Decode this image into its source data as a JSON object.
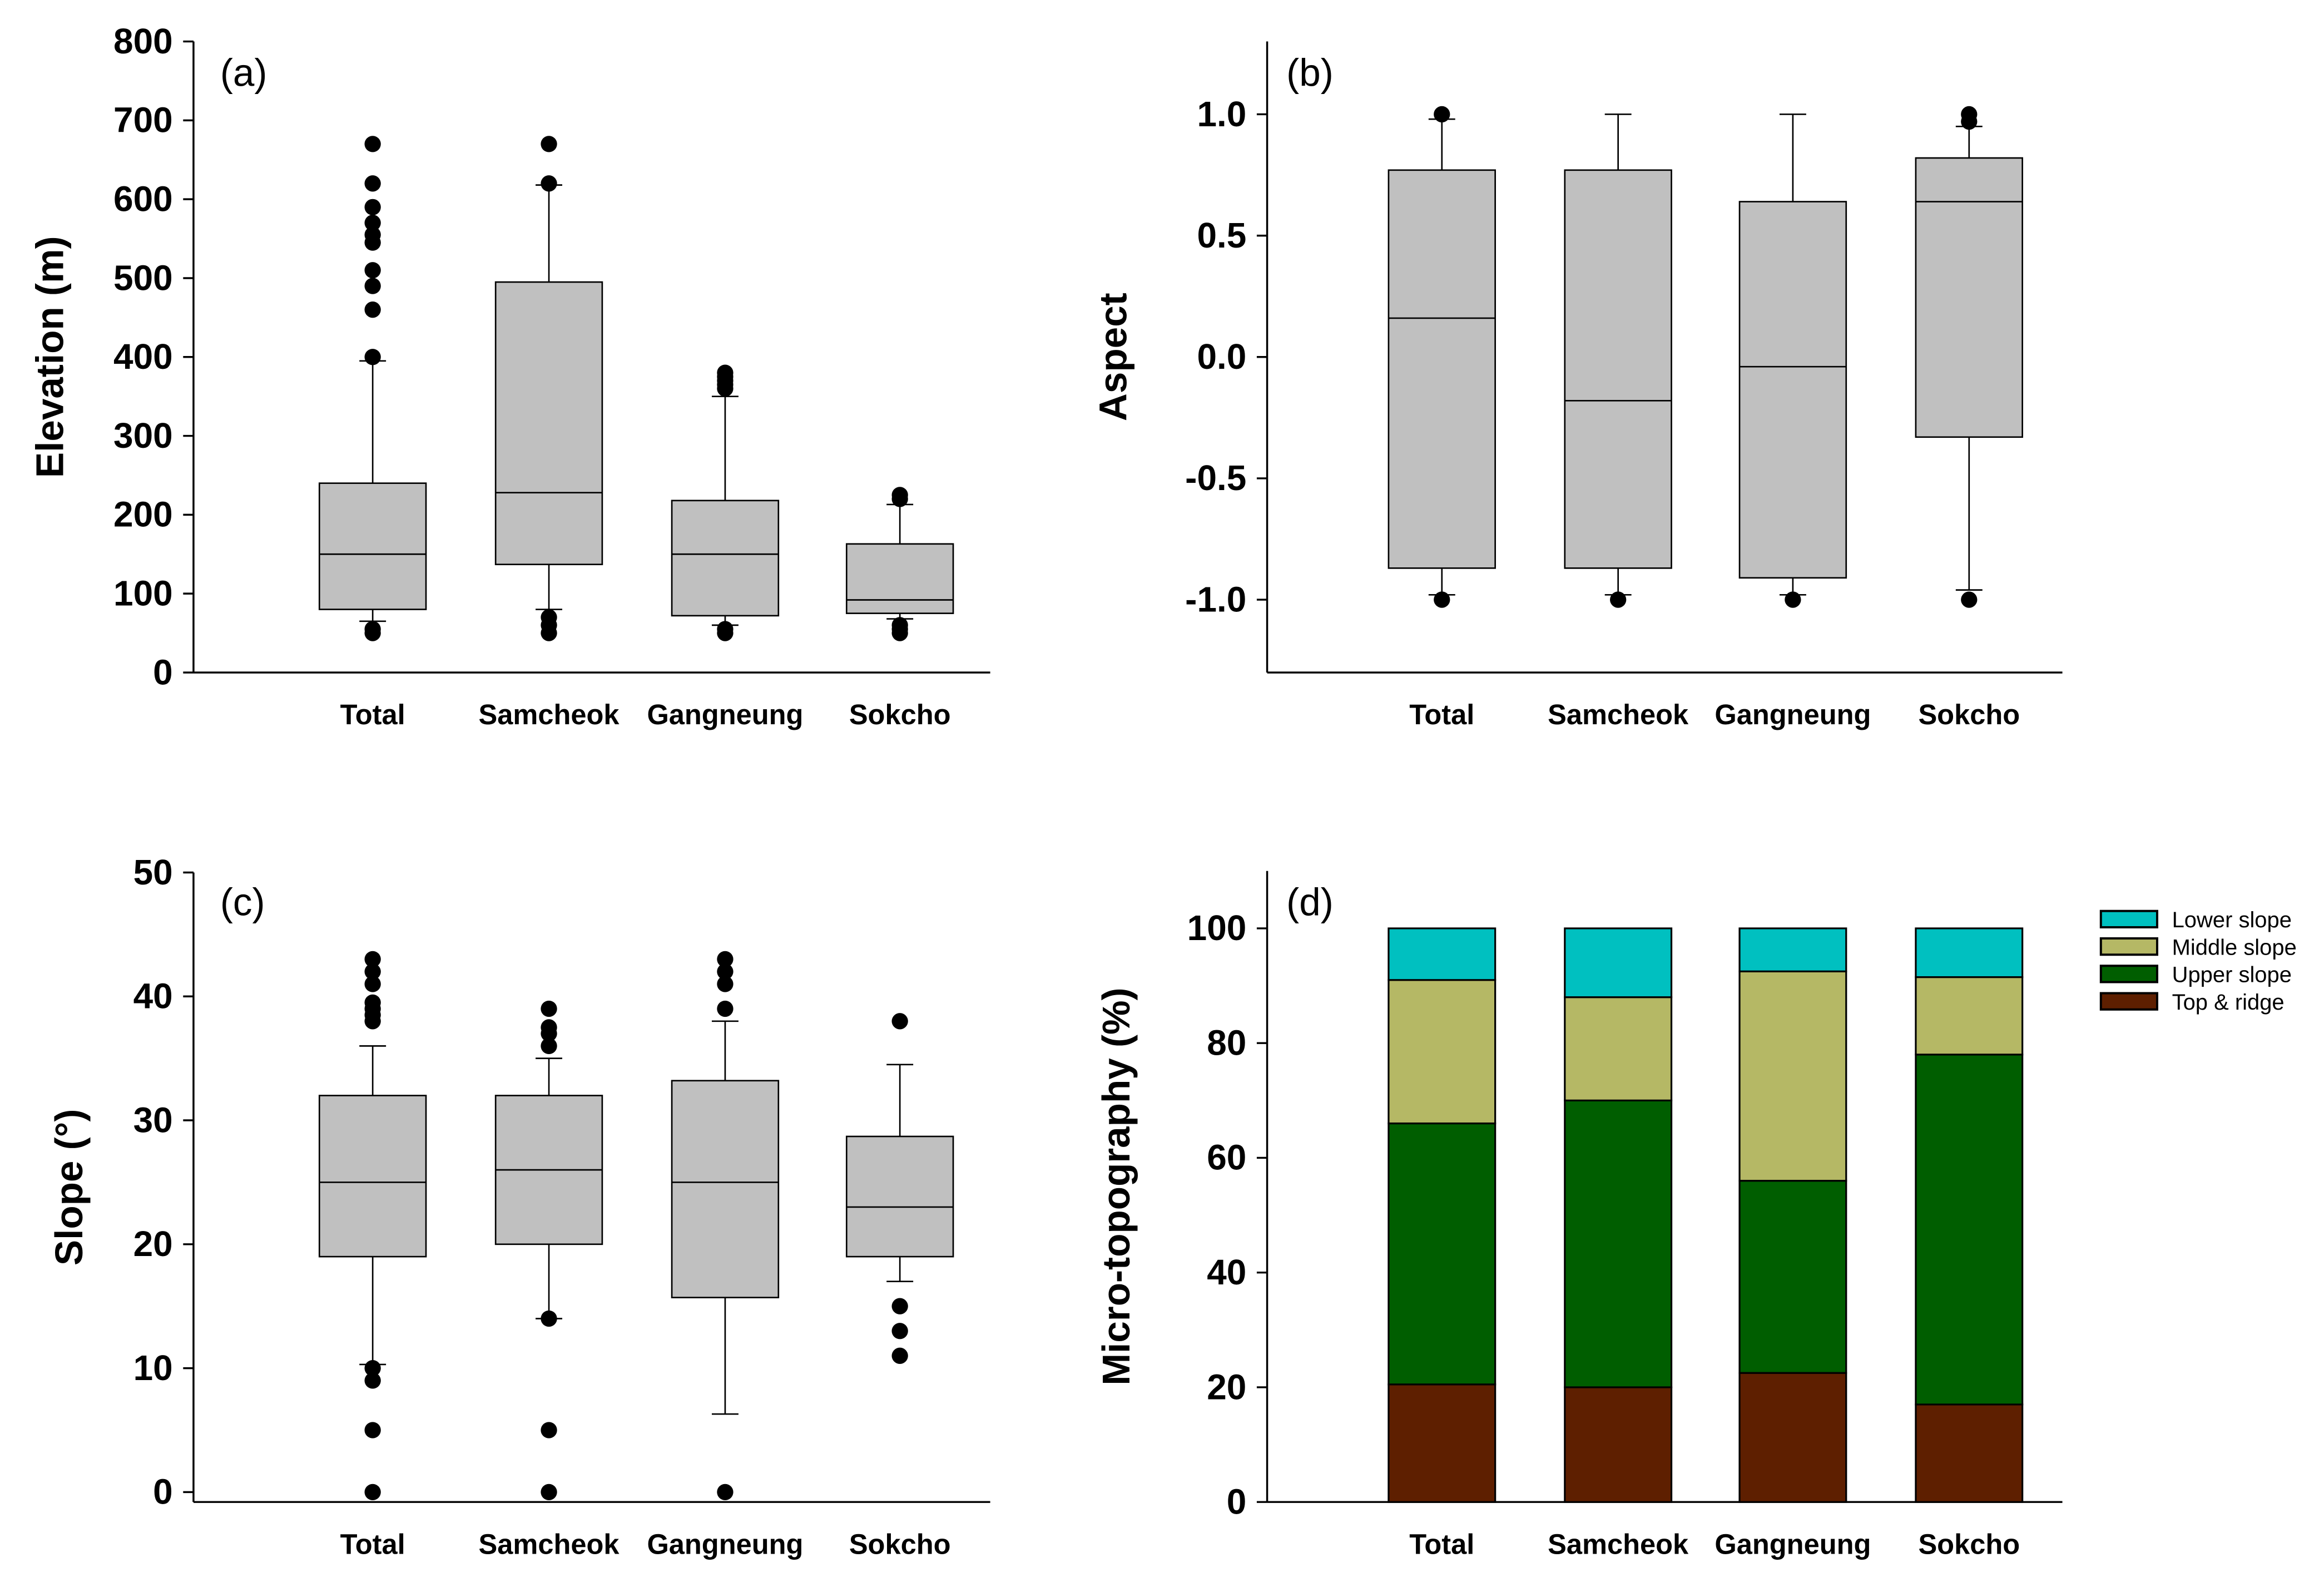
{
  "chart_data": [
    {
      "type": "box",
      "panel_label": "(a)",
      "ylabel": "Elevation (m)",
      "ylim": [
        0,
        800
      ],
      "yticks": [
        0,
        100,
        200,
        300,
        400,
        500,
        600,
        700,
        800
      ],
      "ytick_labels": [
        "0",
        "100",
        "200",
        "300",
        "400",
        "500",
        "600",
        "700",
        "800"
      ],
      "categories": [
        "Total",
        "Samcheok",
        "Gangneung",
        "Sokcho"
      ],
      "boxes": [
        {
          "q1": 80,
          "median": 150,
          "q3": 240,
          "whisker_low": 65,
          "whisker_high": 395,
          "outliers": [
            50,
            55,
            400,
            460,
            490,
            510,
            545,
            555,
            570,
            590,
            620,
            670
          ]
        },
        {
          "q1": 137,
          "median": 228,
          "q3": 495,
          "whisker_low": 80,
          "whisker_high": 618,
          "outliers": [
            50,
            60,
            70,
            620,
            670
          ]
        },
        {
          "q1": 72,
          "median": 150,
          "q3": 218,
          "whisker_low": 60,
          "whisker_high": 350,
          "outliers": [
            50,
            55,
            360,
            365,
            370,
            375,
            380
          ]
        },
        {
          "q1": 75,
          "median": 92,
          "q3": 163,
          "whisker_low": 68,
          "whisker_high": 213,
          "outliers": [
            50,
            55,
            60,
            220,
            225
          ]
        }
      ]
    },
    {
      "type": "box",
      "panel_label": "(b)",
      "ylabel": "Aspect",
      "ylim": [
        -1.3,
        1.3
      ],
      "yticks": [
        -1.0,
        -0.5,
        0.0,
        0.5,
        1.0
      ],
      "ytick_labels": [
        "-1.0",
        "-0.5",
        "0.0",
        "0.5",
        "1.0"
      ],
      "categories": [
        "Total",
        "Samcheok",
        "Gangneung",
        "Sokcho"
      ],
      "boxes": [
        {
          "q1": -0.87,
          "median": 0.16,
          "q3": 0.77,
          "whisker_low": -0.98,
          "whisker_high": 0.98,
          "outliers": [
            -1.0,
            1.0
          ]
        },
        {
          "q1": -0.87,
          "median": -0.18,
          "q3": 0.77,
          "whisker_low": -0.98,
          "whisker_high": 1.0,
          "outliers": [
            -1.0
          ]
        },
        {
          "q1": -0.91,
          "median": -0.04,
          "q3": 0.64,
          "whisker_low": -0.98,
          "whisker_high": 1.0,
          "outliers": [
            -1.0
          ]
        },
        {
          "q1": -0.33,
          "median": 0.64,
          "q3": 0.82,
          "whisker_low": -0.96,
          "whisker_high": 0.95,
          "outliers": [
            -1.0,
            0.97,
            1.0
          ]
        }
      ]
    },
    {
      "type": "box",
      "panel_label": "(c)",
      "ylabel": "Slope (°)",
      "ylim": [
        -0.8,
        50
      ],
      "yticks": [
        0,
        10,
        20,
        30,
        40,
        50
      ],
      "ytick_labels": [
        "0",
        "10",
        "20",
        "30",
        "40",
        "50"
      ],
      "categories": [
        "Total",
        "Samcheok",
        "Gangneung",
        "Sokcho"
      ],
      "boxes": [
        {
          "q1": 19,
          "median": 25,
          "q3": 32,
          "whisker_low": 10.3,
          "whisker_high": 36,
          "outliers": [
            0,
            5,
            9,
            10,
            38,
            38.5,
            39,
            39.5,
            41,
            42,
            43
          ]
        },
        {
          "q1": 20,
          "median": 26,
          "q3": 32,
          "whisker_low": 14,
          "whisker_high": 35,
          "outliers": [
            0,
            5,
            14,
            36,
            37,
            37.5,
            39
          ]
        },
        {
          "q1": 15.7,
          "median": 25,
          "q3": 33.2,
          "whisker_low": 6.3,
          "whisker_high": 38,
          "outliers": [
            0,
            39,
            41,
            42,
            43
          ]
        },
        {
          "q1": 19,
          "median": 23,
          "q3": 28.7,
          "whisker_low": 17,
          "whisker_high": 34.5,
          "outliers": [
            11,
            13,
            15,
            38
          ]
        }
      ]
    },
    {
      "type": "stacked_bar",
      "panel_label": "(d)",
      "ylabel": "Micro-topography (%)",
      "ylim": [
        0,
        110
      ],
      "yticks": [
        0,
        20,
        40,
        60,
        80,
        100
      ],
      "ytick_labels": [
        "0",
        "20",
        "40",
        "60",
        "80",
        "100"
      ],
      "categories": [
        "Total",
        "Samcheok",
        "Gangneung",
        "Sokcho"
      ],
      "legend_position": "top-right",
      "series": [
        {
          "name": "Top & ridge",
          "color": "#5e1f00",
          "values": [
            20.5,
            20,
            22.5,
            17
          ]
        },
        {
          "name": "Upper slope",
          "color": "#005e00",
          "values": [
            45.5,
            50,
            33.5,
            61
          ]
        },
        {
          "name": "Middle slope",
          "color": "#b5b865",
          "values": [
            25,
            18,
            36.5,
            13.5
          ]
        },
        {
          "name": "Lower slope",
          "color": "#00c0c0",
          "values": [
            9,
            12,
            7.5,
            8.5
          ]
        }
      ]
    }
  ],
  "colors": {
    "box_fill": "#c0c0c0"
  }
}
